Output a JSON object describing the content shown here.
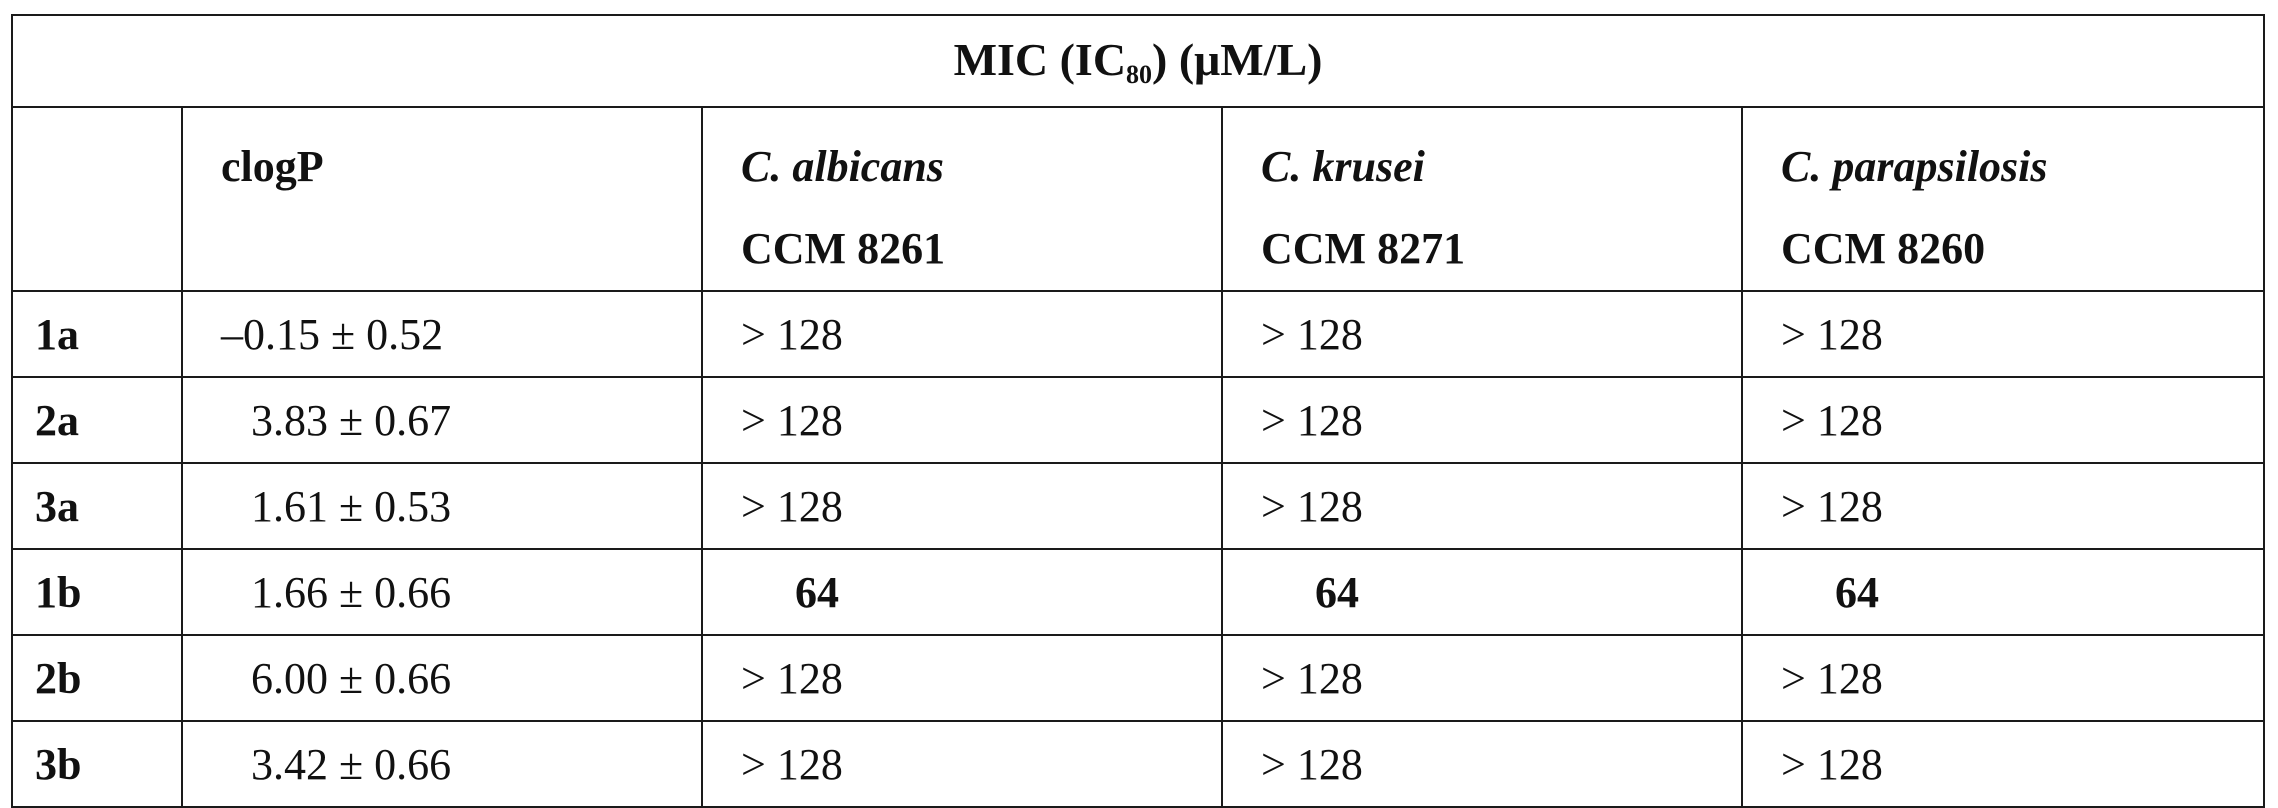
{
  "table": {
    "title_main": "MIC (IC",
    "title_sub": "80",
    "title_tail": ") (μM/L)",
    "header": {
      "empty": "",
      "clogp": "clogP",
      "species": [
        {
          "name": "C. albicans",
          "strain": "CCM 8261"
        },
        {
          "name": "C. krusei",
          "strain": "CCM 8271"
        },
        {
          "name": "C. parapsilosis",
          "strain": "CCM 8260"
        }
      ]
    },
    "rows": [
      {
        "id": "1a",
        "clogp": "–0.15 ± 0.52",
        "mic": [
          "> 128",
          "> 128",
          "> 128"
        ]
      },
      {
        "id": "2a",
        "clogp": "3.83 ± 0.67",
        "mic": [
          "> 128",
          "> 128",
          "> 128"
        ]
      },
      {
        "id": "3a",
        "clogp": "1.61 ± 0.53",
        "mic": [
          "> 128",
          "> 128",
          "> 128"
        ]
      },
      {
        "id": "1b",
        "clogp": "1.66 ± 0.66",
        "mic": [
          "64",
          "64",
          "64"
        ]
      },
      {
        "id": "2b",
        "clogp": "6.00 ± 0.66",
        "mic": [
          "> 128",
          "> 128",
          "> 128"
        ]
      },
      {
        "id": "3b",
        "clogp": "3.42 ± 0.66",
        "mic": [
          "> 128",
          "> 128",
          "> 128"
        ]
      }
    ]
  }
}
